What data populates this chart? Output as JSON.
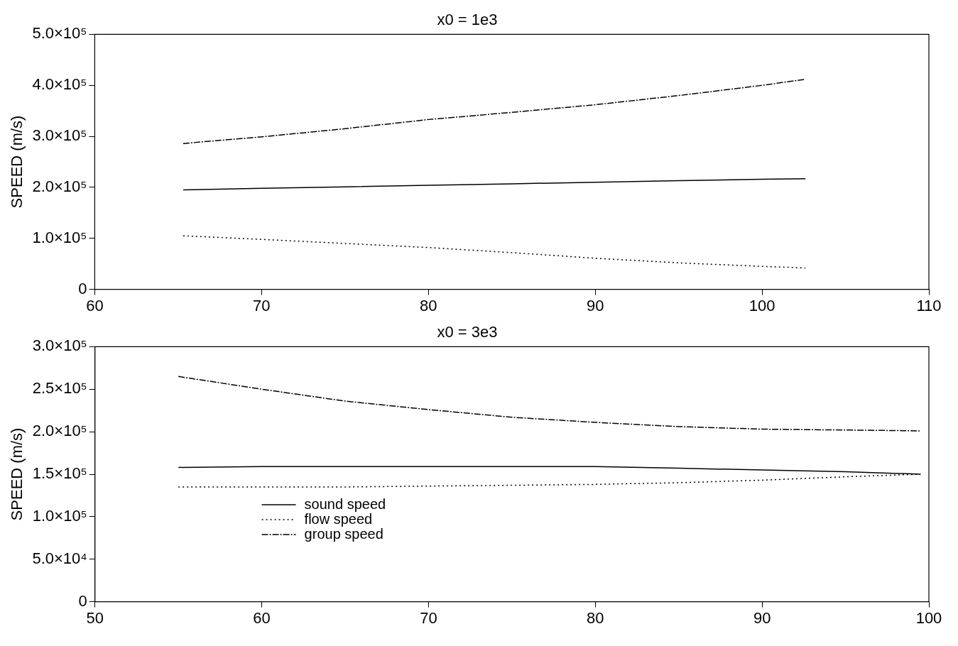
{
  "chart_data": [
    {
      "type": "line",
      "title": "x0 = 1e3",
      "ylabel": "SPEED (m/s)",
      "x": [
        65.3,
        70,
        75,
        80,
        85,
        90,
        95,
        100,
        102.6
      ],
      "xlim": [
        60,
        110
      ],
      "xticks": [
        60,
        70,
        80,
        90,
        100,
        110
      ],
      "ylim": [
        0,
        500000
      ],
      "yticks": [
        {
          "value": 0,
          "label": "0"
        },
        {
          "value": 100000,
          "label": "1.0×10⁵"
        },
        {
          "value": 200000,
          "label": "2.0×10⁵"
        },
        {
          "value": 300000,
          "label": "3.0×10⁵"
        },
        {
          "value": 400000,
          "label": "4.0×10⁵"
        },
        {
          "value": 500000,
          "label": "5.0×10⁵"
        }
      ],
      "grid": false,
      "legend": false,
      "marker": "none",
      "series": [
        {
          "color": "#000000",
          "line_style": "solid",
          "values": [
            195000,
            198000,
            201000,
            204000,
            207000,
            210000,
            213000,
            216000,
            217000
          ]
        },
        {
          "color": "#000000",
          "line_style": "dotted",
          "values": [
            105000,
            98000,
            90000,
            82000,
            72000,
            61000,
            52000,
            45000,
            42000
          ]
        },
        {
          "color": "#000000",
          "line_style": "dashdot",
          "values": [
            286000,
            299000,
            315000,
            333000,
            347000,
            362000,
            380000,
            400000,
            412000
          ]
        }
      ]
    },
    {
      "type": "line",
      "title": "x0 = 3e3",
      "ylabel": "SPEED (m/s)",
      "x": [
        55,
        60,
        65,
        70,
        75,
        80,
        85,
        90,
        95,
        99.5
      ],
      "xlim": [
        50,
        100
      ],
      "xticks": [
        50,
        60,
        70,
        80,
        90,
        100
      ],
      "ylim": [
        0,
        300000
      ],
      "yticks": [
        {
          "value": 0,
          "label": "0"
        },
        {
          "value": 50000,
          "label": "5.0×10⁴"
        },
        {
          "value": 100000,
          "label": "1.0×10⁵"
        },
        {
          "value": 150000,
          "label": "1.5×10⁵"
        },
        {
          "value": 200000,
          "label": "2.0×10⁵"
        },
        {
          "value": 250000,
          "label": "2.5×10⁵"
        },
        {
          "value": 300000,
          "label": "3.0×10⁵"
        }
      ],
      "grid": false,
      "legend": "bottom left",
      "marker": "none",
      "series": [
        {
          "name": "sound speed",
          "color": "#000000",
          "line_style": "solid",
          "values": [
            158000,
            159000,
            159000,
            159000,
            159000,
            159000,
            157000,
            155000,
            153000,
            150000
          ]
        },
        {
          "name": "flow speed",
          "color": "#000000",
          "line_style": "dotted",
          "values": [
            135000,
            135000,
            135000,
            136000,
            137000,
            138000,
            140000,
            143000,
            147000,
            150000
          ]
        },
        {
          "name": "group speed",
          "color": "#000000",
          "line_style": "dashdot",
          "values": [
            265000,
            250000,
            236000,
            226000,
            217000,
            211000,
            206000,
            203000,
            202000,
            201000
          ]
        }
      ]
    }
  ]
}
